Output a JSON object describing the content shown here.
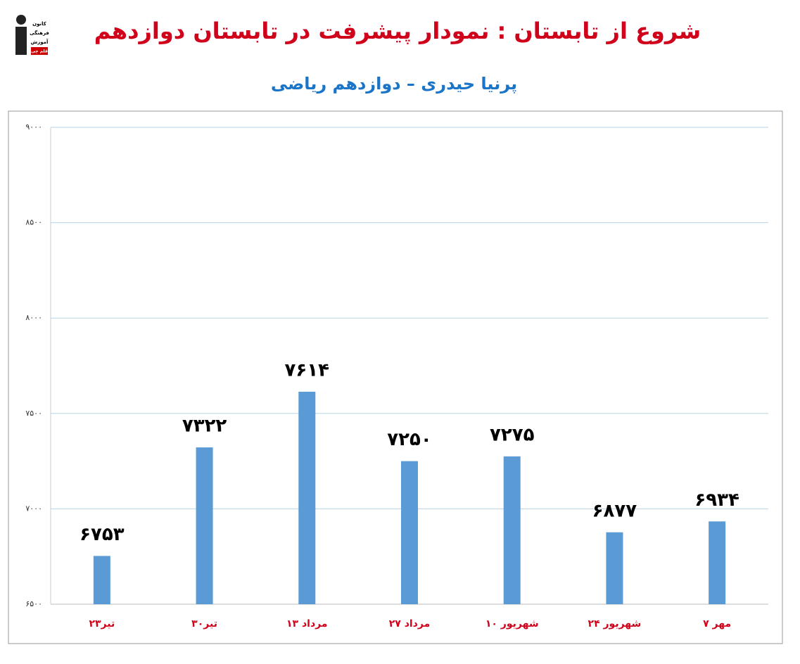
{
  "logo": {
    "lines": [
      "کانون",
      "فرهنگی",
      "آموزش",
      "قلم چی"
    ]
  },
  "chart_data": {
    "type": "bar",
    "title": "شروع از تابستان : نمودار پیشرفت در تابستان دوازدهم",
    "subtitle": "پرنیا حیدری – دوازدهم ریاضی",
    "categories": [
      "۲۳تیر",
      "۳۰تیر",
      "۱۳ مرداد",
      "۲۷ مرداد",
      "۱۰ شهریور",
      "۲۴ شهریور",
      "۷ مهر"
    ],
    "values": [
      6753,
      7322,
      7614,
      7250,
      7275,
      6877,
      6934
    ],
    "value_labels": [
      "۶۷۵۳",
      "۷۳۲۲",
      "۷۶۱۴",
      "۷۲۵۰",
      "۷۲۷۵",
      "۶۸۷۷",
      "۶۹۳۴"
    ],
    "color": "#5b9bd5",
    "ylim": [
      6500,
      9000
    ],
    "yticks": [
      {
        "value": 6500,
        "label": "۶۵۰۰"
      },
      {
        "value": 7000,
        "label": "۷۰۰۰"
      },
      {
        "value": 7500,
        "label": "۷۵۰۰"
      },
      {
        "value": 8000,
        "label": "۸۰۰۰"
      },
      {
        "value": 8500,
        "label": "۸۵۰۰"
      },
      {
        "value": 9000,
        "label": "۹۰۰۰"
      }
    ],
    "grid": true
  }
}
